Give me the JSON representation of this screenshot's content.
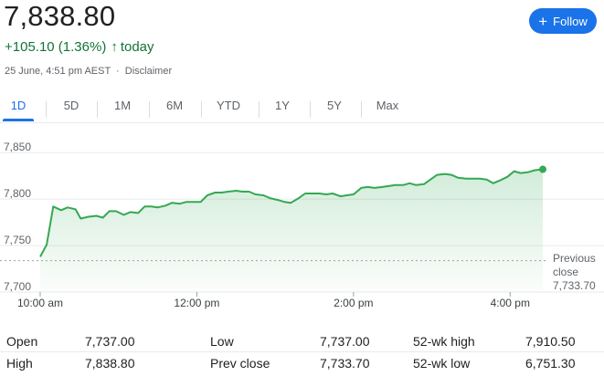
{
  "header": {
    "price": "7,838.80",
    "change": "+105.10 (1.36%)",
    "change_arrow": "↑",
    "change_period": "today",
    "timestamp": "25 June, 4:51 pm AEST",
    "separator": "·",
    "disclaimer": "Disclaimer",
    "follow_label": "Follow",
    "follow_icon": "plus-icon"
  },
  "tabs": [
    {
      "label": "1D",
      "active": true
    },
    {
      "label": "5D",
      "active": false
    },
    {
      "label": "1M",
      "active": false
    },
    {
      "label": "6M",
      "active": false
    },
    {
      "label": "YTD",
      "active": false
    },
    {
      "label": "1Y",
      "active": false
    },
    {
      "label": "5Y",
      "active": false
    },
    {
      "label": "Max",
      "active": false
    }
  ],
  "colors": {
    "accent": "#1a73e8",
    "positive": "#137333",
    "line": "#34a853"
  },
  "chart_data": {
    "type": "area",
    "x_ticks": [
      "10:00 am",
      "12:00 pm",
      "2:00 pm",
      "4:00 pm"
    ],
    "y_ticks": [
      "7,850",
      "7,800",
      "7,750",
      "7,700"
    ],
    "ylim": [
      7700,
      7860
    ],
    "xlim_minutes": [
      0,
      420
    ],
    "prev_close": {
      "label_1": "Previous",
      "label_2": "close",
      "value": "7,733.70",
      "y": 7733.7
    },
    "series": [
      {
        "x": [
          0,
          5,
          10,
          16,
          21,
          27,
          31,
          37,
          43,
          48,
          53,
          58,
          64,
          69,
          75,
          80,
          85,
          90,
          96,
          101,
          107,
          112,
          118,
          123,
          128,
          134,
          139,
          144,
          150,
          155,
          160,
          165,
          171,
          176,
          182,
          187,
          192,
          198,
          203,
          208,
          214,
          219,
          224,
          230,
          235,
          240,
          246,
          251,
          256,
          262,
          267,
          272,
          278,
          283,
          288,
          294,
          299,
          304,
          310,
          315,
          320,
          326,
          331,
          337,
          342,
          347,
          352,
          358,
          363,
          368,
          374,
          379,
          385
        ],
        "y": [
          7738,
          7751,
          7792,
          7788,
          7791,
          7789,
          7779,
          7781,
          7782,
          7780,
          7787,
          7787,
          7783,
          7786,
          7785,
          7792,
          7792,
          7791,
          7793,
          7796,
          7795,
          7797,
          7797,
          7797,
          7804,
          7807,
          7807,
          7808,
          7809,
          7808,
          7808,
          7805,
          7804,
          7801,
          7799,
          7797,
          7796,
          7801,
          7806,
          7806,
          7806,
          7805,
          7806,
          7803,
          7804,
          7805,
          7812,
          7813,
          7812,
          7813,
          7814,
          7815,
          7815,
          7817,
          7815,
          7816,
          7821,
          7826,
          7827,
          7826,
          7823,
          7822,
          7822,
          7822,
          7821,
          7817,
          7820,
          7824,
          7830,
          7828,
          7829,
          7831,
          7832
        ]
      }
    ]
  },
  "stats": {
    "rows": [
      [
        {
          "label": "Open",
          "value": "7,737.00"
        },
        {
          "label": "Low",
          "value": "7,737.00"
        },
        {
          "label": "52-wk high",
          "value": "7,910.50"
        }
      ],
      [
        {
          "label": "High",
          "value": "7,838.80"
        },
        {
          "label": "Prev close",
          "value": "7,733.70"
        },
        {
          "label": "52-wk low",
          "value": "6,751.30"
        }
      ]
    ]
  }
}
